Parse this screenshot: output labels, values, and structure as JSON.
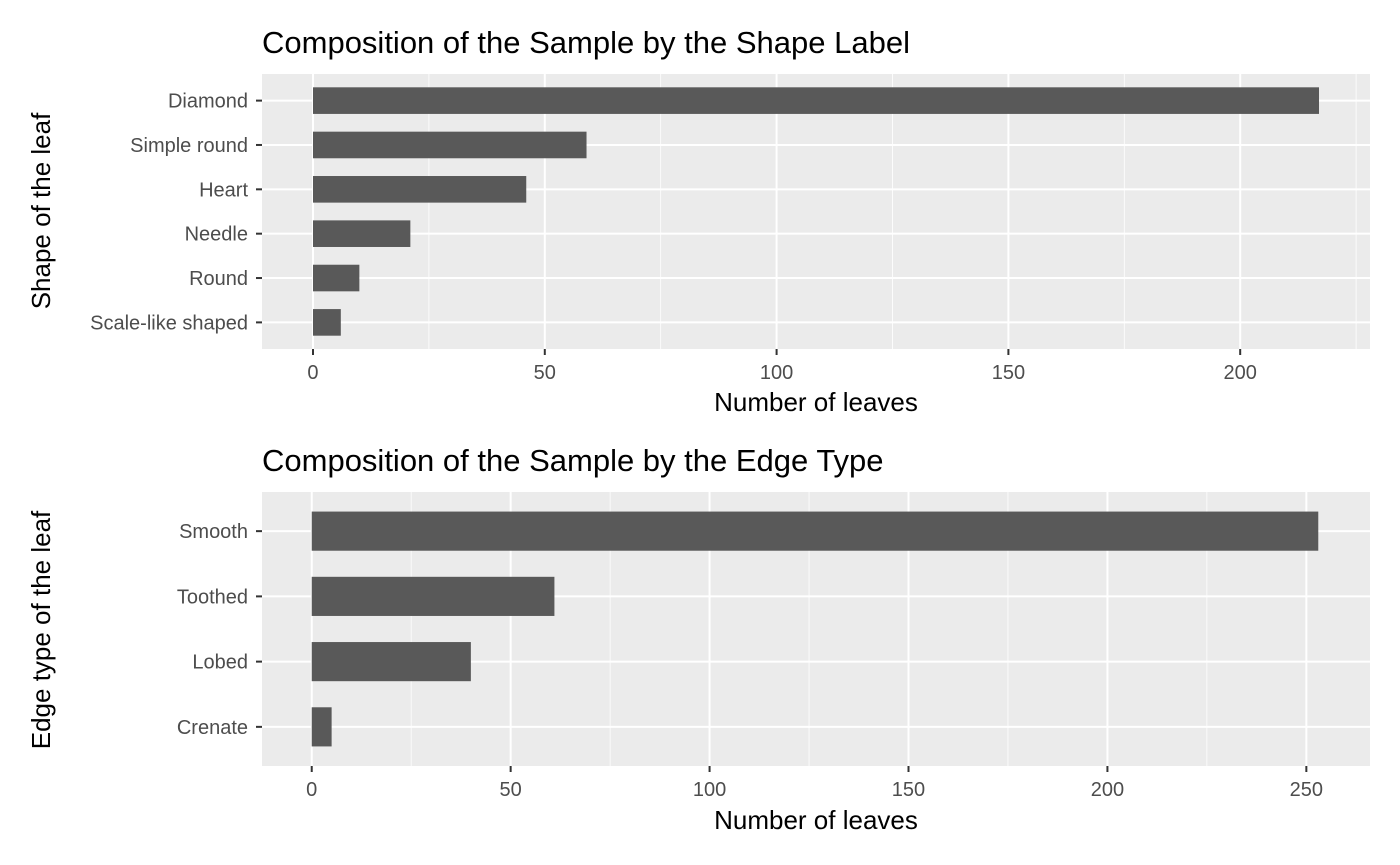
{
  "chart_data": [
    {
      "type": "bar",
      "orientation": "horizontal",
      "title": "Composition of the Sample by the Shape Label",
      "xlabel": "Number of leaves",
      "ylabel": "Shape of the leaf",
      "categories": [
        "Diamond",
        "Simple round",
        "Heart",
        "Needle",
        "Round",
        "Scale-like shaped"
      ],
      "values": [
        217,
        59,
        46,
        21,
        10,
        6
      ],
      "xlim": [
        -11,
        228
      ],
      "x_ticks": [
        0,
        50,
        100,
        150,
        200
      ],
      "x_tick_labels": [
        "0",
        "50",
        "100",
        "150",
        "200"
      ],
      "bar_color": "#595959",
      "panel_color": "#ebebeb",
      "grid": true
    },
    {
      "type": "bar",
      "orientation": "horizontal",
      "title": "Composition of the Sample by the Edge Type",
      "xlabel": "Number of leaves",
      "ylabel": "Edge type of the leaf",
      "categories": [
        "Smooth",
        "Toothed",
        "Lobed",
        "Crenate"
      ],
      "values": [
        253,
        61,
        40,
        5
      ],
      "xlim": [
        -12.5,
        266
      ],
      "x_ticks": [
        0,
        50,
        100,
        150,
        200,
        250
      ],
      "x_tick_labels": [
        "0",
        "50",
        "100",
        "150",
        "200",
        "250"
      ],
      "bar_color": "#595959",
      "panel_color": "#ebebeb",
      "grid": true
    }
  ]
}
